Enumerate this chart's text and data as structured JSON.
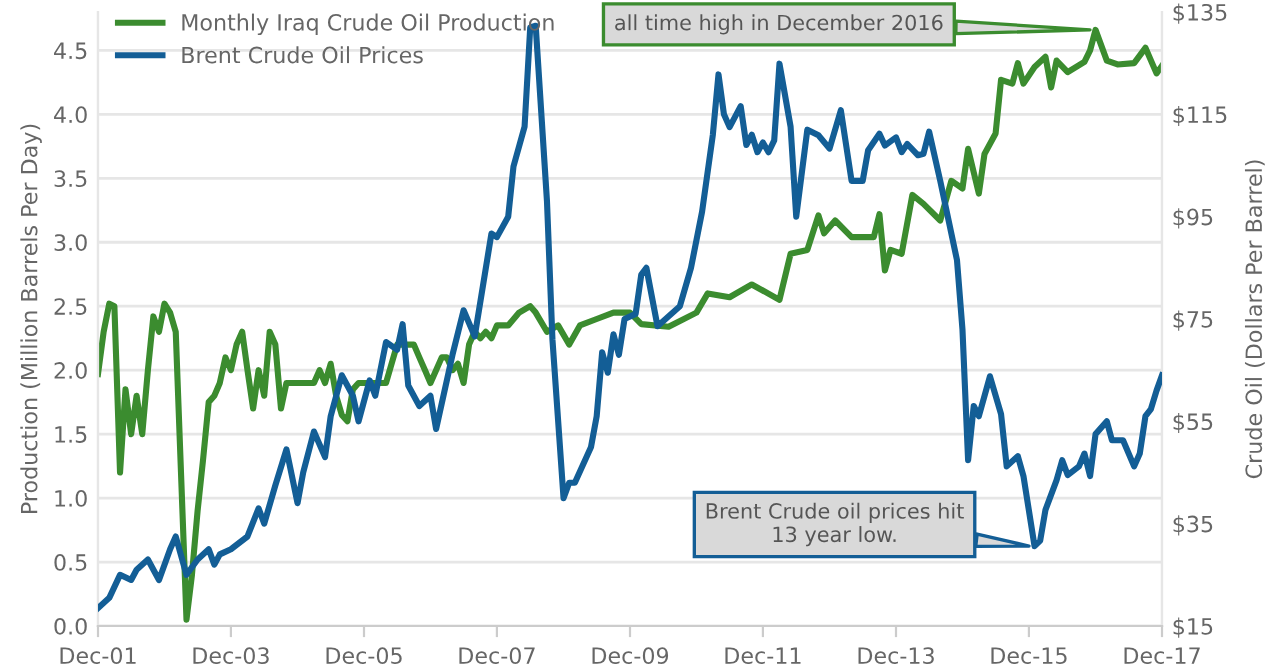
{
  "chart_data": {
    "type": "line",
    "xlabel": null,
    "ylabel": "Production (Million Barrels Per Day)",
    "y2label": "Crude Oil (Dollars Per Barrel)",
    "xlim": [
      "2001-12",
      "2017-12"
    ],
    "xticks": [
      {
        "value": "2001-12",
        "label": "Dec-01"
      },
      {
        "value": "2003-12",
        "label": "Dec-03"
      },
      {
        "value": "2005-12",
        "label": "Dec-05"
      },
      {
        "value": "2007-12",
        "label": "Dec-07"
      },
      {
        "value": "2009-12",
        "label": "Dec-09"
      },
      {
        "value": "2011-12",
        "label": "Dec-11"
      },
      {
        "value": "2013-12",
        "label": "Dec-13"
      },
      {
        "value": "2015-12",
        "label": "Dec-15"
      },
      {
        "value": "2017-12",
        "label": "Dec-17"
      }
    ],
    "ylim": [
      0,
      4.8
    ],
    "yticks": [
      {
        "value": 0,
        "label": "0.0"
      },
      {
        "value": 0.5,
        "label": "0.5"
      },
      {
        "value": 1,
        "label": "1.0"
      },
      {
        "value": 1.5,
        "label": "1.5"
      },
      {
        "value": 2,
        "label": "2.0"
      },
      {
        "value": 2.5,
        "label": "2.5"
      },
      {
        "value": 3,
        "label": "3.0"
      },
      {
        "value": 3.5,
        "label": "3.5"
      },
      {
        "value": 4,
        "label": "4.0"
      },
      {
        "value": 4.5,
        "label": "4.5"
      }
    ],
    "y2lim": [
      15,
      135
    ],
    "y2ticks": [
      {
        "value": 15,
        "label": "$15"
      },
      {
        "value": 35,
        "label": "$35"
      },
      {
        "value": 55,
        "label": "$55"
      },
      {
        "value": 75,
        "label": "$75"
      },
      {
        "value": 95,
        "label": "$95"
      },
      {
        "value": 115,
        "label": "$115"
      },
      {
        "value": 135,
        "label": "$135"
      }
    ],
    "grid": "y",
    "legend": "top left",
    "marker": "none",
    "line_style": "solid",
    "annotations": [
      {
        "text": "all time high in December 2016",
        "x": "2016-12",
        "y": 4.66
      },
      {
        "text": "Brent Crude oil prices hit\n13 year low.",
        "x": "2016-01",
        "y": 0.62
      }
    ],
    "series": [
      {
        "name": "Monthly Iraq Crude Oil Production",
        "color": "#3b8c2f",
        "x": [
          "2001-12",
          "2002-01",
          "2002-02",
          "2002-03",
          "2002-04",
          "2002-05",
          "2002-06",
          "2002-07",
          "2002-08",
          "2002-09",
          "2002-10",
          "2002-11",
          "2002-12",
          "2003-01",
          "2003-02",
          "2003-04",
          "2003-05",
          "2003-06",
          "2003-07",
          "2003-08",
          "2003-09",
          "2003-10",
          "2003-11",
          "2003-12",
          "2004-01",
          "2004-02",
          "2004-03",
          "2004-04",
          "2004-05",
          "2004-06",
          "2004-07",
          "2004-08",
          "2004-09",
          "2004-10",
          "2005-03",
          "2005-04",
          "2005-05",
          "2005-06",
          "2005-07",
          "2005-08",
          "2005-09",
          "2005-10",
          "2005-11",
          "2005-12",
          "2006-04",
          "2006-06",
          "2006-09",
          "2006-10",
          "2006-11",
          "2006-12",
          "2007-01",
          "2007-02",
          "2007-03",
          "2007-04",
          "2007-05",
          "2007-06",
          "2007-07",
          "2007-08",
          "2007-09",
          "2007-10",
          "2007-11",
          "2007-12",
          "2008-02",
          "2008-04",
          "2008-06",
          "2008-07",
          "2008-09",
          "2008-11",
          "2009-01",
          "2009-03",
          "2009-06",
          "2009-09",
          "2009-12",
          "2010-02",
          "2010-07",
          "2010-12",
          "2011-02",
          "2011-06",
          "2011-10",
          "2012-03",
          "2012-05",
          "2012-08",
          "2012-10",
          "2012-11",
          "2013-01",
          "2013-04",
          "2013-08",
          "2013-09",
          "2013-10",
          "2013-11",
          "2014-01",
          "2014-03",
          "2014-05",
          "2014-08",
          "2014-10",
          "2014-12",
          "2015-01",
          "2015-03",
          "2015-04",
          "2015-06",
          "2015-07",
          "2015-09",
          "2015-10",
          "2015-11",
          "2016-01",
          "2016-03",
          "2016-04",
          "2016-05",
          "2016-07",
          "2016-10",
          "2016-11",
          "2016-12",
          "2017-02",
          "2017-04",
          "2017-07",
          "2017-09",
          "2017-11",
          "2017-12"
        ],
        "values": [
          1.97,
          2.3,
          2.52,
          2.5,
          1.2,
          1.85,
          1.5,
          1.8,
          1.5,
          2.0,
          2.42,
          2.3,
          2.52,
          2.45,
          2.3,
          0.05,
          0.4,
          0.9,
          1.3,
          1.75,
          1.8,
          1.9,
          2.1,
          2.0,
          2.2,
          2.3,
          2.0,
          1.7,
          2.0,
          1.8,
          2.3,
          2.2,
          1.7,
          1.9,
          1.9,
          2.0,
          1.9,
          2.05,
          1.8,
          1.65,
          1.6,
          1.85,
          1.9,
          1.9,
          1.9,
          2.2,
          2.2,
          2.1,
          2.0,
          1.9,
          2.0,
          2.1,
          2.1,
          2.0,
          2.05,
          1.9,
          2.2,
          2.3,
          2.25,
          2.3,
          2.25,
          2.35,
          2.35,
          2.45,
          2.5,
          2.45,
          2.3,
          2.35,
          2.2,
          2.35,
          2.4,
          2.45,
          2.45,
          2.36,
          2.34,
          2.45,
          2.6,
          2.57,
          2.67,
          2.55,
          2.91,
          2.94,
          3.21,
          3.07,
          3.17,
          3.04,
          3.04,
          3.22,
          2.78,
          2.94,
          2.91,
          3.37,
          3.3,
          3.17,
          3.48,
          3.42,
          3.73,
          3.38,
          3.69,
          3.85,
          4.27,
          4.24,
          4.4,
          4.24,
          4.37,
          4.45,
          4.21,
          4.42,
          4.33,
          4.41,
          4.5,
          4.66,
          4.42,
          4.39,
          4.4,
          4.52,
          4.32,
          4.38
        ]
      },
      {
        "name": "Brent Crude Oil Prices",
        "color": "#135e96",
        "axis": "y2",
        "x": [
          "2001-12",
          "2002-02",
          "2002-04",
          "2002-06",
          "2002-07",
          "2002-09",
          "2002-11",
          "2003-01",
          "2003-02",
          "2003-04",
          "2003-06",
          "2003-08",
          "2003-09",
          "2003-10",
          "2003-12",
          "2004-03",
          "2004-05",
          "2004-06",
          "2004-08",
          "2004-10",
          "2004-12",
          "2005-01",
          "2005-03",
          "2005-05",
          "2005-06",
          "2005-08",
          "2005-10",
          "2005-11",
          "2006-01",
          "2006-02",
          "2006-04",
          "2006-06",
          "2006-07",
          "2006-08",
          "2006-10",
          "2006-12",
          "2007-01",
          "2007-04",
          "2007-06",
          "2007-08",
          "2007-11",
          "2007-12",
          "2008-02",
          "2008-03",
          "2008-05",
          "2008-06",
          "2008-07",
          "2008-09",
          "2008-10",
          "2008-12",
          "2009-01",
          "2009-02",
          "2009-05",
          "2009-06",
          "2009-07",
          "2009-08",
          "2009-09",
          "2009-10",
          "2009-11",
          "2010-01",
          "2010-02",
          "2010-03",
          "2010-05",
          "2010-09",
          "2010-11",
          "2011-01",
          "2011-03",
          "2011-04",
          "2011-05",
          "2011-06",
          "2011-08",
          "2011-09",
          "2011-10",
          "2011-11",
          "2011-12",
          "2012-01",
          "2012-02",
          "2012-03",
          "2012-05",
          "2012-06",
          "2012-08",
          "2012-10",
          "2012-12",
          "2013-02",
          "2013-04",
          "2013-06",
          "2013-07",
          "2013-09",
          "2013-10",
          "2013-12",
          "2014-01",
          "2014-02",
          "2014-04",
          "2014-05",
          "2014-06",
          "2014-08",
          "2014-11",
          "2014-12",
          "2015-01",
          "2015-02",
          "2015-03",
          "2015-05",
          "2015-07",
          "2015-08",
          "2015-10",
          "2015-11",
          "2016-01",
          "2016-02",
          "2016-03",
          "2016-05",
          "2016-06",
          "2016-07",
          "2016-09",
          "2016-10",
          "2016-11",
          "2016-12",
          "2017-02",
          "2017-03",
          "2017-05",
          "2017-07",
          "2017-08",
          "2017-09",
          "2017-10",
          "2017-11",
          "2017-12"
        ],
        "values": [
          18.5,
          20.5,
          25,
          24,
          26,
          28,
          24,
          30,
          32.5,
          25,
          28,
          30,
          27,
          29,
          30,
          32.5,
          38,
          35,
          42.5,
          49.5,
          39,
          45,
          53,
          48,
          56,
          64,
          60,
          55,
          63,
          60,
          70.5,
          69,
          74,
          62,
          58,
          60,
          53.5,
          68,
          76.7,
          71.6,
          91.7,
          91,
          95,
          104.8,
          112.6,
          132,
          132.3,
          98,
          71,
          40,
          43,
          43,
          50,
          56,
          68.5,
          64.5,
          72,
          68,
          75,
          76,
          83.7,
          85,
          73.6,
          77.5,
          85,
          96,
          111,
          122.8,
          115,
          112.5,
          116.6,
          109,
          111,
          107.6,
          109.5,
          107.6,
          109.9,
          124.9,
          112.6,
          95,
          112,
          110.9,
          108.3,
          115.8,
          102,
          102,
          108,
          111.2,
          108.9,
          110.5,
          107.6,
          109.2,
          107,
          107.3,
          111.6,
          102,
          86.5,
          73,
          47.4,
          58,
          56,
          63.8,
          56.4,
          46.2,
          48.2,
          44.3,
          30.6,
          31.7,
          37.7,
          43.5,
          47.4,
          44.5,
          46.2,
          48.7,
          44.3,
          52.5,
          55,
          51.3,
          51.3,
          46.2,
          48.7,
          56,
          57.4,
          61,
          64
        ]
      }
    ]
  }
}
